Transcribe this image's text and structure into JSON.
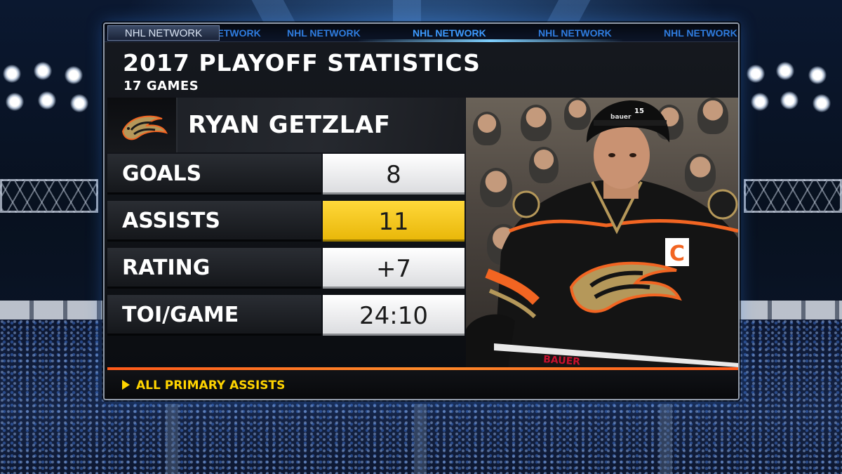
{
  "network": {
    "tab_label": "NHL NETWORK",
    "ticker_items": [
      "NHL NETWORK",
      "NHL NETWORK",
      "NHL NETWORK",
      "NHL NETWORK",
      "NHL NETWORK"
    ]
  },
  "graphic": {
    "title": "2017 PLAYOFF STATISTICS",
    "subtitle": "17 GAMES",
    "player_name": "RYAN GETZLAF",
    "team_logo_icon": "anaheim-ducks-logo",
    "stats": [
      {
        "label": "GOALS",
        "value": "8",
        "highlight": false
      },
      {
        "label": "ASSISTS",
        "value": "11",
        "highlight": true
      },
      {
        "label": "RATING",
        "value": "+7",
        "highlight": false
      },
      {
        "label": "TOI/GAME",
        "value": "24:10",
        "highlight": false
      }
    ],
    "footer_note": "ALL PRIMARY ASSISTS"
  },
  "photo": {
    "jersey_number": "15",
    "helmet_brand": "bauer",
    "captain_letter": "C",
    "stick_brand": "BAUER"
  },
  "colors": {
    "highlight": "#f5c518",
    "accent_orange": "#ff6a1f",
    "network_blue": "#2f7de0",
    "footer_text": "#ffd400",
    "jersey_black": "#141414",
    "jersey_orange": "#f26522",
    "duck_gold": "#b5985a"
  }
}
